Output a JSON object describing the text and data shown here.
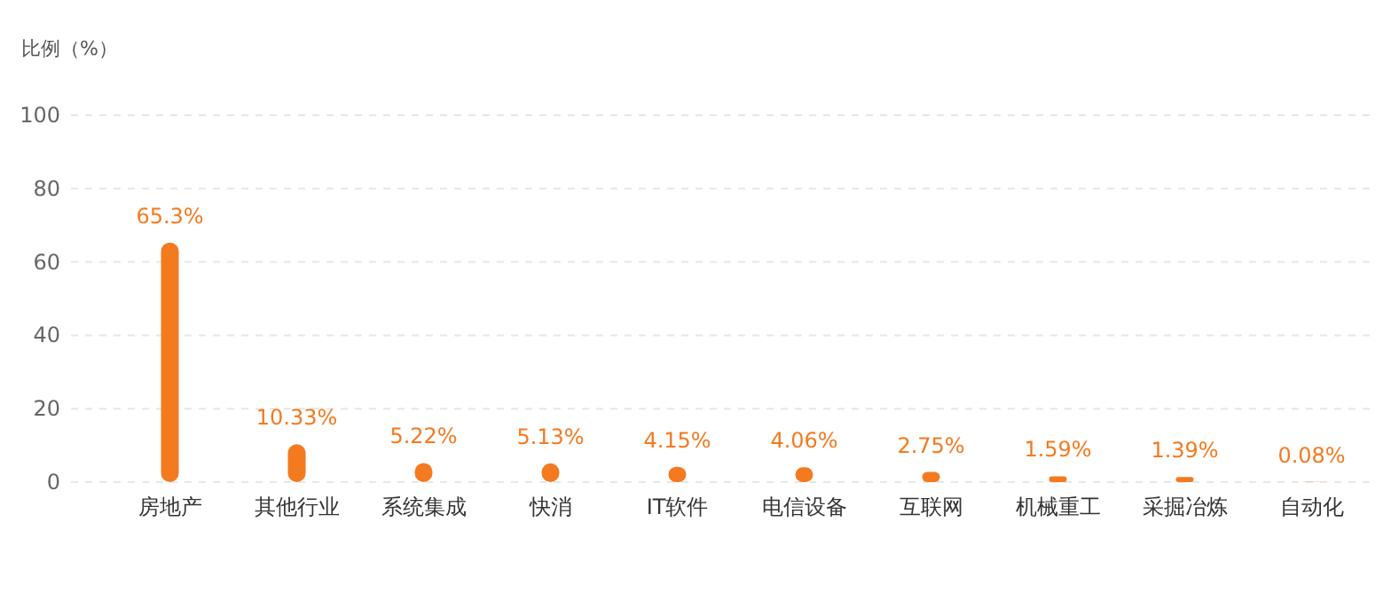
{
  "chart_data": {
    "type": "bar",
    "ylabel": "比例（%）",
    "categories": [
      "房地产",
      "其他行业",
      "系统集成",
      "快消",
      "IT软件",
      "电信设备",
      "互联网",
      "机械重工",
      "采掘冶炼",
      "自动化"
    ],
    "values": [
      65.3,
      10.33,
      5.22,
      5.13,
      4.15,
      4.06,
      2.75,
      1.59,
      1.39,
      0.08
    ],
    "value_labels": [
      "65.3%",
      "10.33%",
      "5.22%",
      "5.13%",
      "4.15%",
      "4.06%",
      "2.75%",
      "1.59%",
      "1.39%",
      "0.08%"
    ],
    "color": "#f47a20",
    "ylim": [
      0,
      100
    ],
    "yticks": [
      0,
      20,
      40,
      60,
      80,
      100
    ],
    "grid": "y"
  }
}
